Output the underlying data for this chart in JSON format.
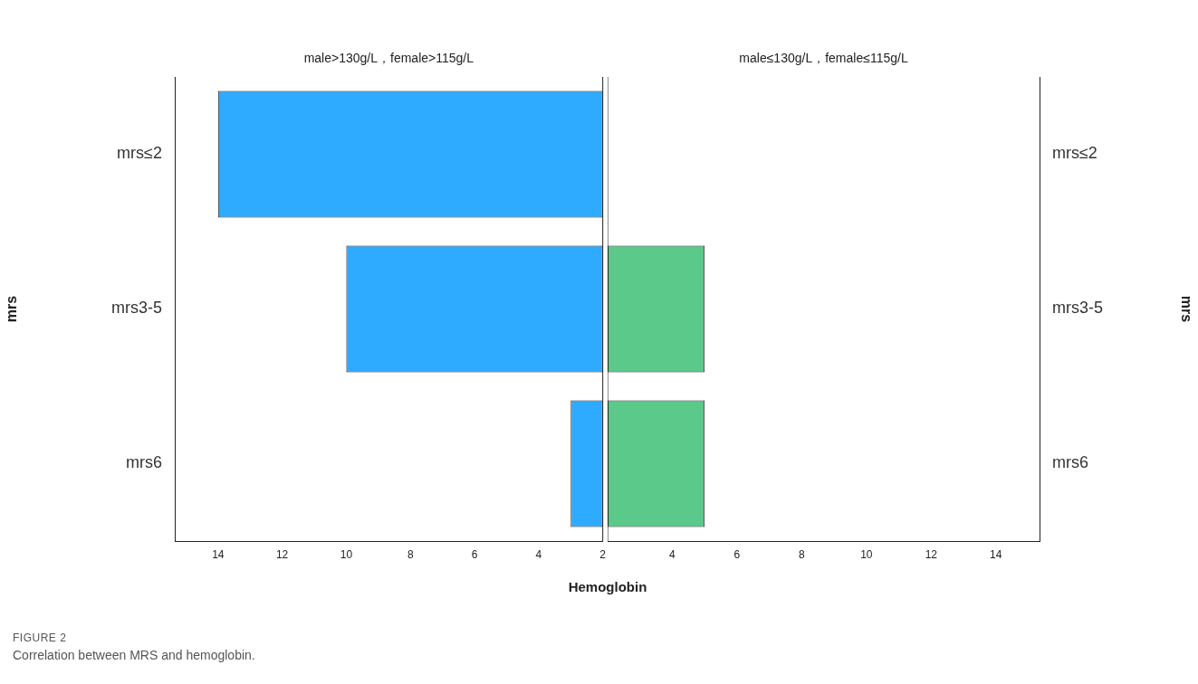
{
  "chart_data": [
    {
      "type": "bar",
      "orientation": "horizontal",
      "title": "male>130g/L，female>115g/L",
      "ylabel": "mrs",
      "xlabel": "Hemoglobin",
      "categories": [
        "mrs≤2",
        "mrs3-5",
        "mrs6"
      ],
      "values": [
        14,
        10,
        3
      ],
      "color": "#2eaaff",
      "xlim": [
        15.35,
        2
      ],
      "xticks": [
        14,
        12,
        10,
        8,
        6,
        4,
        2
      ],
      "grid": false,
      "legend": false,
      "annotations": [
        "FIGURE 2",
        "Correlation between MRS and hemoglobin."
      ]
    },
    {
      "type": "bar",
      "orientation": "horizontal",
      "title": "male≤130g/L，female≤115g/L",
      "ylabel": "mrs",
      "categories": [
        "mrs≤2",
        "mrs3-5",
        "mrs6"
      ],
      "values": [
        null,
        5,
        5
      ],
      "color": "#5ac98a",
      "xlim": [
        2,
        15.35
      ],
      "xticks": [
        4,
        6,
        8,
        10,
        12,
        14
      ],
      "grid": false,
      "legend": false
    }
  ]
}
